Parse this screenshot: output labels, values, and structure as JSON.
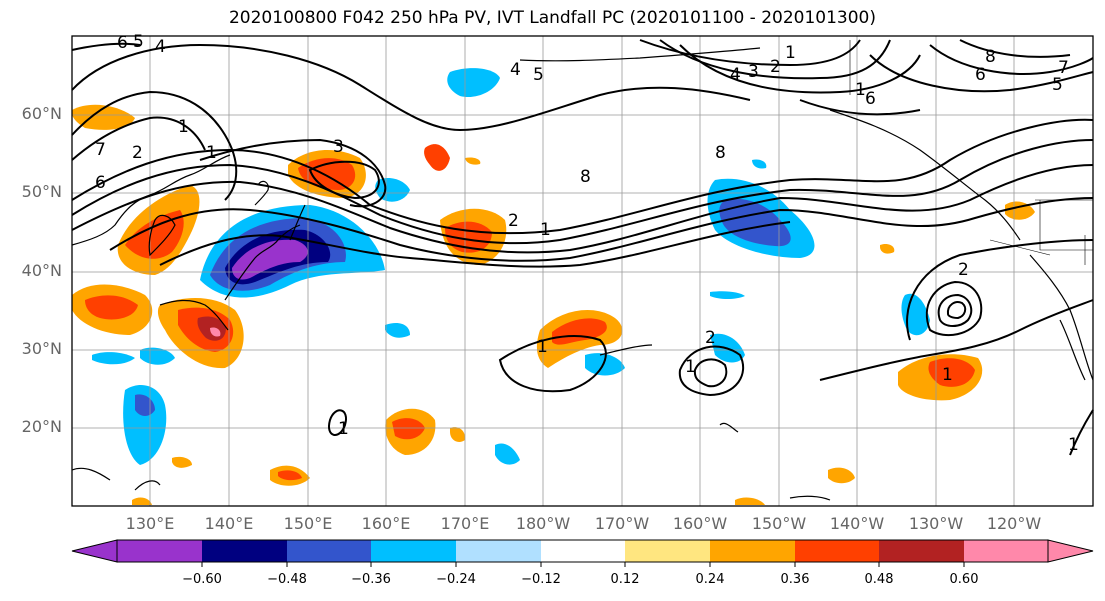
{
  "title": "2020100800 F042 250 hPa PV, IVT Landfall PC (2020101100 - 2020101300)",
  "lat_labels": [
    "60°N",
    "50°N",
    "40°N",
    "30°N",
    "20°N"
  ],
  "lon_labels": [
    "130°E",
    "140°E",
    "150°E",
    "160°E",
    "170°E",
    "180°W",
    "170°W",
    "160°W",
    "150°W",
    "140°W",
    "130°W",
    "120°W"
  ],
  "colorbar": {
    "colors": [
      "#9933cc",
      "#000080",
      "#3355cc",
      "#00bfff",
      "#b0e0ff",
      "#ffffff",
      "#ffe680",
      "#ffa500",
      "#ff4000",
      "#b22222",
      "#ff88aa"
    ],
    "ticks": [
      "−0.60",
      "−0.48",
      "−0.36",
      "−0.24",
      "−0.12",
      "0.12",
      "0.24",
      "0.36",
      "0.48",
      "0.60"
    ]
  },
  "contour_labels": [
    "6",
    "4",
    "5",
    "1",
    "2",
    "7",
    "6",
    "3",
    "4",
    "5",
    "4",
    "3",
    "1",
    "2",
    "8",
    "6",
    "5",
    "7",
    "6",
    "8",
    "8",
    "1",
    "2",
    "1",
    "1",
    "2",
    "1",
    "1",
    "1",
    "2",
    "1",
    "1"
  ]
}
